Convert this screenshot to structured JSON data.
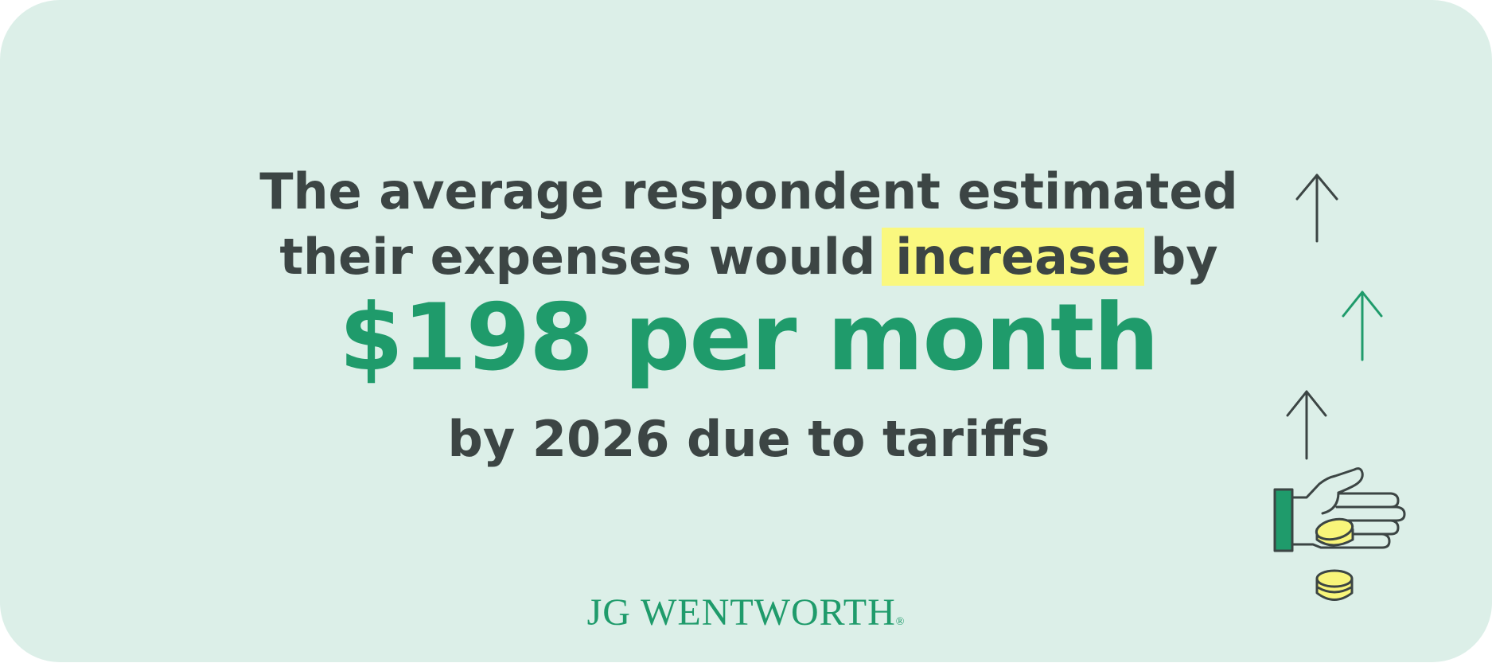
{
  "headline": {
    "line1": "The average respondent estimated",
    "line2_before": "their expenses would",
    "line2_highlight": "increase",
    "line2_after": "by"
  },
  "main_stat": "$198 per month",
  "subline": "by 2026 due to tariffs",
  "brand": {
    "name": "JG WENTWORTH",
    "registered_mark": "®"
  },
  "icons": [
    "arrow-up-icon",
    "arrow-up-icon",
    "arrow-up-icon",
    "hand-with-coins-icon",
    "coin-stack-icon"
  ],
  "colors": {
    "background": "#dcefe8",
    "text_dark": "#3c4544",
    "accent_green": "#1f9b6b",
    "highlight_yellow": "#faf87f",
    "coin_yellow": "#f8f57a"
  }
}
